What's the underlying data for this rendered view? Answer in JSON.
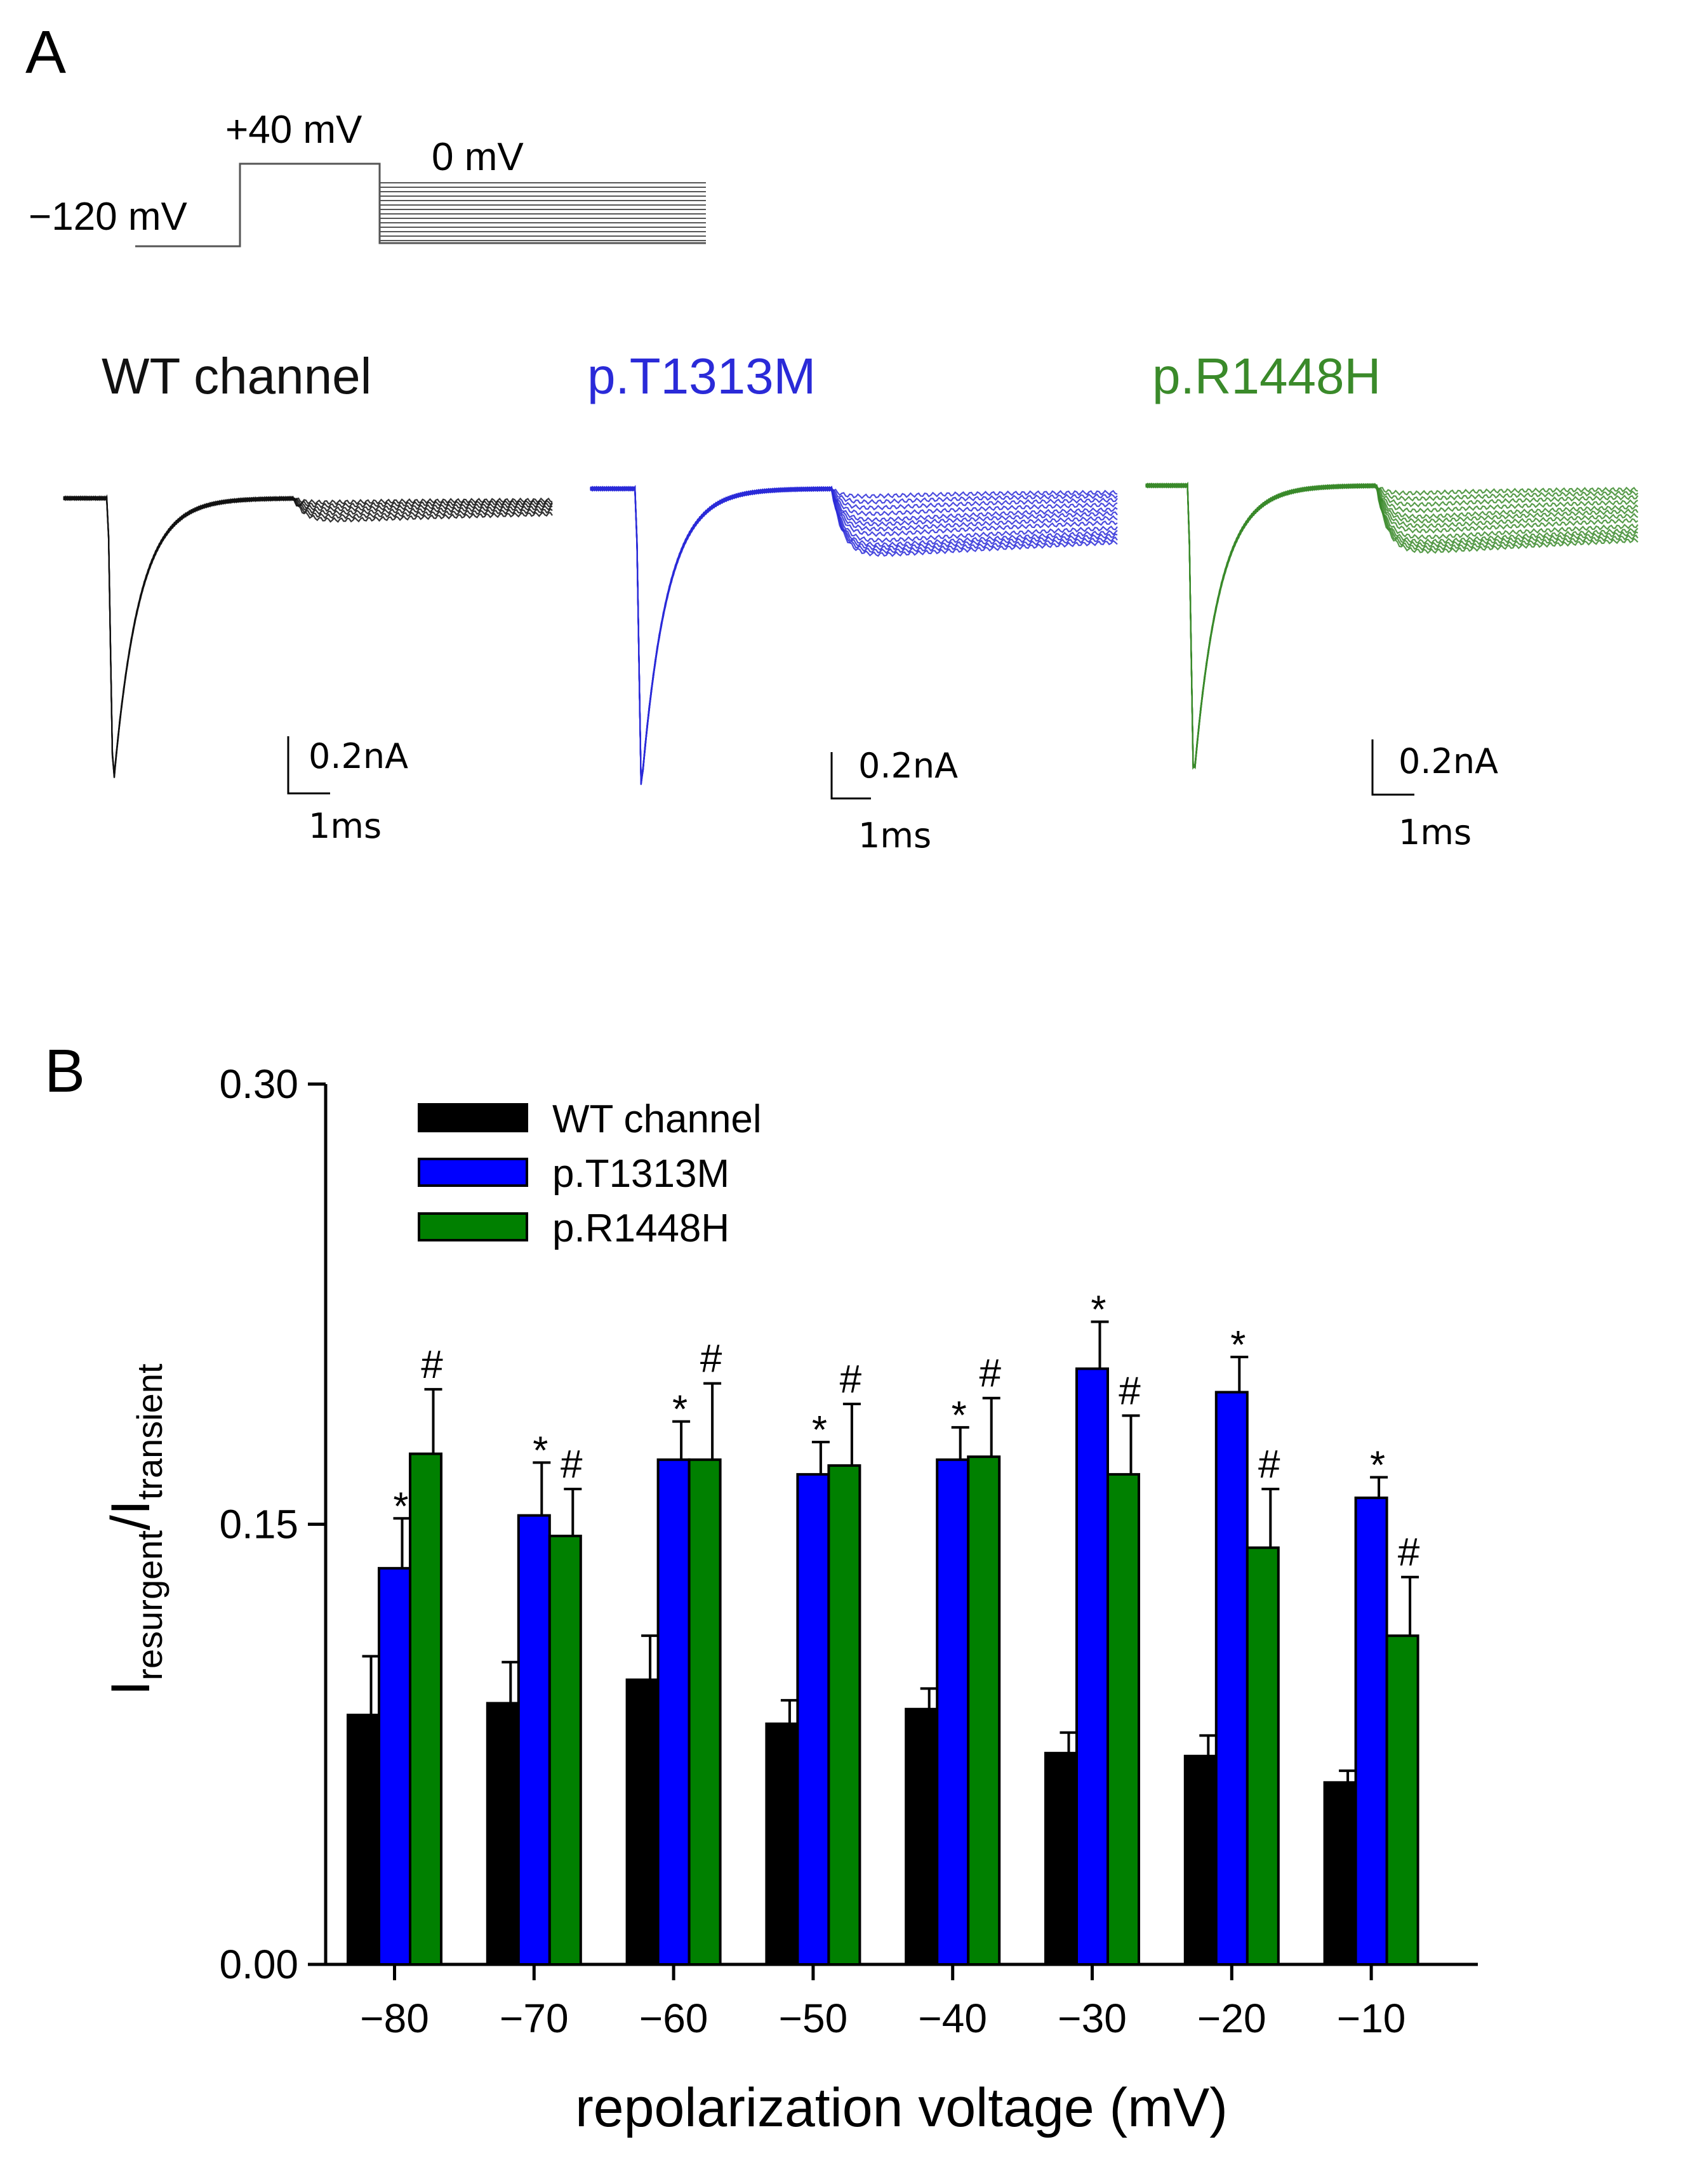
{
  "panels": {
    "a": "A",
    "b": "B"
  },
  "protocol": {
    "holding": "−120 mV",
    "prepulse": "+40 mV",
    "step": "0 mV"
  },
  "traces": [
    {
      "title": "WT channel",
      "color": "#111111",
      "scale_current": "0.2nA",
      "scale_time": "1ms"
    },
    {
      "title": "p.T1313M",
      "color": "#2a2ad8",
      "scale_current": "0.2nA",
      "scale_time": "1ms"
    },
    {
      "title": "p.R1448H",
      "color": "#3a8a2a",
      "scale_current": "0.2nA",
      "scale_time": "1ms"
    }
  ],
  "chart_data": {
    "type": "bar",
    "title": "",
    "xlabel": "repolarization voltage (mV)",
    "ylabel": {
      "main": "I",
      "sub1": "resurgent",
      "sep": "/I",
      "sub2": "transient"
    },
    "ylim": [
      0,
      0.3
    ],
    "yticks": [
      "0.00",
      "0.15",
      "0.30"
    ],
    "ytick_values": [
      0,
      0.15,
      0.3
    ],
    "categories": [
      "−80",
      "−70",
      "−60",
      "−50",
      "−40",
      "−30",
      "−20",
      "−10"
    ],
    "legend_position": "top-left",
    "series": [
      {
        "name": "WT channel",
        "color": "#000000",
        "values": [
          0.085,
          0.089,
          0.097,
          0.082,
          0.087,
          0.072,
          0.071,
          0.062
        ],
        "errors": [
          0.02,
          0.014,
          0.015,
          0.008,
          0.007,
          0.007,
          0.007,
          0.004
        ],
        "marks": [
          "",
          "",
          "",
          "",
          "",
          "",
          "",
          ""
        ]
      },
      {
        "name": "p.T1313M",
        "color": "#0000ff",
        "values": [
          0.135,
          0.153,
          0.172,
          0.167,
          0.172,
          0.203,
          0.195,
          0.159
        ],
        "errors": [
          0.017,
          0.018,
          0.013,
          0.011,
          0.011,
          0.016,
          0.012,
          0.007
        ],
        "marks": [
          "*",
          "*",
          "*",
          "*",
          "*",
          "*",
          "*",
          "*"
        ]
      },
      {
        "name": "p.R1448H",
        "color": "#008000",
        "values": [
          0.174,
          0.146,
          0.172,
          0.17,
          0.173,
          0.167,
          0.142,
          0.112
        ],
        "errors": [
          0.022,
          0.016,
          0.026,
          0.021,
          0.02,
          0.02,
          0.02,
          0.02
        ],
        "marks": [
          "#",
          "#",
          "#",
          "#",
          "#",
          "#",
          "#",
          "#"
        ]
      }
    ]
  }
}
